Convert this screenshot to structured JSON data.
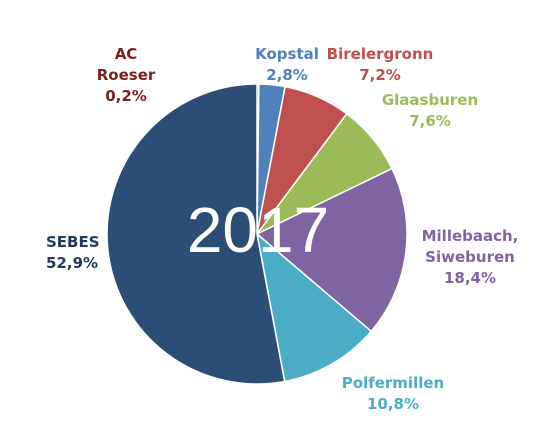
{
  "chart_data": {
    "type": "pie",
    "center_label": "2017",
    "slices": [
      {
        "label_lines": [
          "AC",
          "Roeser"
        ],
        "value_label": "0,2%",
        "value": 0.2,
        "color": "#C0504D",
        "label_color": "#7F1F1D"
      },
      {
        "label_lines": [
          "Kopstal"
        ],
        "value_label": "2,8%",
        "value": 2.8,
        "color": "#4F81BD",
        "label_color": "#4F81BD"
      },
      {
        "label_lines": [
          "Birelergronn"
        ],
        "value_label": "7,2%",
        "value": 7.2,
        "color": "#C0504D",
        "label_color": "#C0504D"
      },
      {
        "label_lines": [
          "Glaasburen"
        ],
        "value_label": "7,6%",
        "value": 7.6,
        "color": "#9BBB59",
        "label_color": "#9BBB59"
      },
      {
        "label_lines": [
          "Millebaach,",
          "Siweburen"
        ],
        "value_label": "18,4%",
        "value": 18.4,
        "color": "#8064A2",
        "label_color": "#8064A2"
      },
      {
        "label_lines": [
          "Polfermillen"
        ],
        "value_label": "10,8%",
        "value": 10.8,
        "color": "#4BACC6",
        "label_color": "#4BACC6"
      },
      {
        "label_lines": [
          "SEBES"
        ],
        "value_label": "52,9%",
        "value": 52.9,
        "color": "#2C4D75",
        "label_color": "#1F3A5F"
      }
    ]
  }
}
